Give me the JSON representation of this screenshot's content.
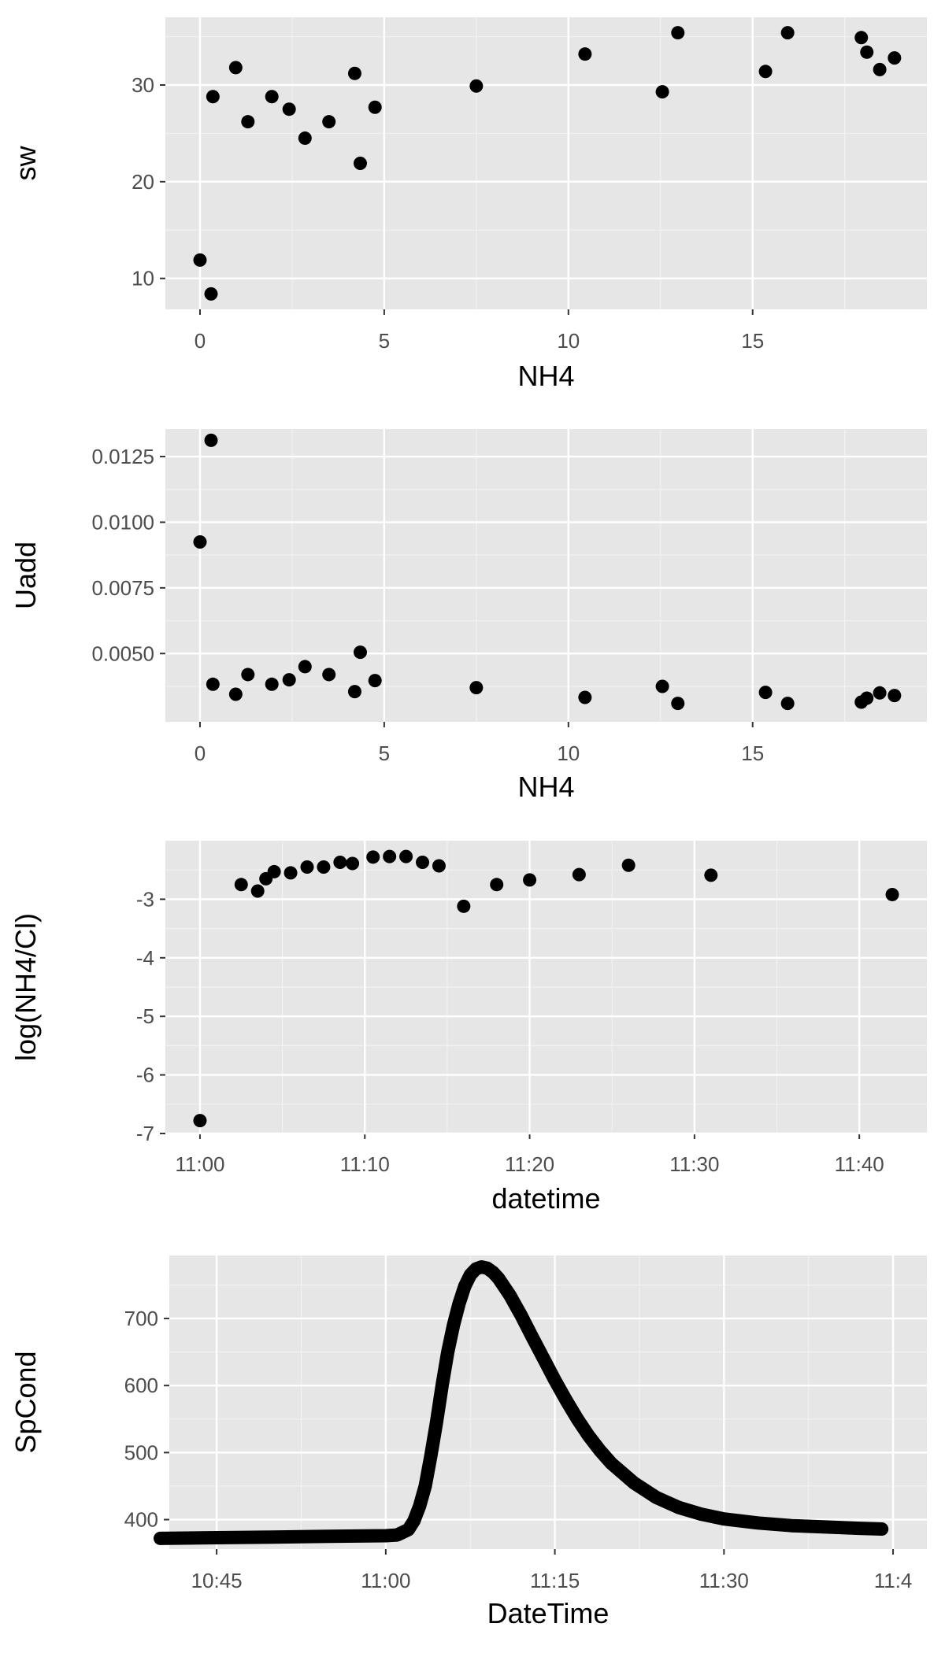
{
  "colors": {
    "panel_background": "#e6e6e6",
    "grid_major": "#ffffff",
    "grid_minor": "#f2f2f2",
    "point": "#000000",
    "tick_label": "#4d4d4d",
    "axis_title": "#000000"
  },
  "chart_data": [
    {
      "type": "scatter",
      "xlabel": "NH4",
      "ylabel": "sw",
      "grid": true,
      "xlim": [
        -0.94,
        19.73
      ],
      "ylim": [
        6.8,
        37.0
      ],
      "x_ticks": [
        0,
        5,
        10,
        15
      ],
      "x_tick_labels": [
        "0",
        "5",
        "10",
        "15"
      ],
      "y_ticks": [
        10,
        20,
        30
      ],
      "y_tick_labels": [
        "10",
        "20",
        "30"
      ],
      "points": [
        {
          "x": 0.0,
          "y": 11.9
        },
        {
          "x": 0.3,
          "y": 8.4
        },
        {
          "x": 0.35,
          "y": 28.8
        },
        {
          "x": 0.97,
          "y": 31.8
        },
        {
          "x": 1.3,
          "y": 26.2
        },
        {
          "x": 1.95,
          "y": 28.8
        },
        {
          "x": 2.42,
          "y": 27.5
        },
        {
          "x": 2.85,
          "y": 24.5
        },
        {
          "x": 3.5,
          "y": 26.2
        },
        {
          "x": 4.2,
          "y": 31.2
        },
        {
          "x": 4.35,
          "y": 21.9
        },
        {
          "x": 4.75,
          "y": 27.7
        },
        {
          "x": 7.5,
          "y": 29.9
        },
        {
          "x": 10.45,
          "y": 33.2
        },
        {
          "x": 12.55,
          "y": 29.3
        },
        {
          "x": 12.97,
          "y": 35.4
        },
        {
          "x": 15.35,
          "y": 31.4
        },
        {
          "x": 15.95,
          "y": 35.4
        },
        {
          "x": 17.95,
          "y": 34.9
        },
        {
          "x": 18.1,
          "y": 33.4
        },
        {
          "x": 18.45,
          "y": 31.6
        },
        {
          "x": 18.85,
          "y": 32.8
        }
      ]
    },
    {
      "type": "scatter",
      "xlabel": "NH4",
      "ylabel": "Uadd",
      "grid": true,
      "xlim": [
        -0.94,
        19.73
      ],
      "ylim": [
        0.0024,
        0.01355
      ],
      "x_ticks": [
        0,
        5,
        10,
        15
      ],
      "x_tick_labels": [
        "0",
        "5",
        "10",
        "15"
      ],
      "y_ticks": [
        0.005,
        0.0075,
        0.01,
        0.0125
      ],
      "y_tick_labels": [
        "0.0050",
        "0.0075",
        "0.0100",
        "0.0125"
      ],
      "points": [
        {
          "x": 0.0,
          "y": 0.00925
        },
        {
          "x": 0.3,
          "y": 0.01312
        },
        {
          "x": 0.35,
          "y": 0.00383
        },
        {
          "x": 0.97,
          "y": 0.00345
        },
        {
          "x": 1.3,
          "y": 0.0042
        },
        {
          "x": 1.95,
          "y": 0.00383
        },
        {
          "x": 2.42,
          "y": 0.004
        },
        {
          "x": 2.85,
          "y": 0.0045
        },
        {
          "x": 3.5,
          "y": 0.0042
        },
        {
          "x": 4.2,
          "y": 0.00355
        },
        {
          "x": 4.35,
          "y": 0.00505
        },
        {
          "x": 4.75,
          "y": 0.00397
        },
        {
          "x": 7.5,
          "y": 0.0037
        },
        {
          "x": 10.45,
          "y": 0.00333
        },
        {
          "x": 12.55,
          "y": 0.00375
        },
        {
          "x": 12.97,
          "y": 0.0031
        },
        {
          "x": 15.35,
          "y": 0.00352
        },
        {
          "x": 15.95,
          "y": 0.0031
        },
        {
          "x": 17.95,
          "y": 0.00315
        },
        {
          "x": 18.1,
          "y": 0.0033
        },
        {
          "x": 18.45,
          "y": 0.0035
        },
        {
          "x": 18.85,
          "y": 0.0034
        }
      ]
    },
    {
      "type": "scatter",
      "xlabel": "datetime",
      "ylabel": "log(NH4/Cl)",
      "grid": true,
      "xlim": [
        "11:00 -2.1 min",
        "11:44.1"
      ],
      "x_minutes_range": [
        -2.1,
        44.1
      ],
      "ylim": [
        -7.0,
        -2.0
      ],
      "x_ticks": [
        0,
        10,
        20,
        30,
        40
      ],
      "x_tick_labels": [
        "11:00",
        "11:10",
        "11:20",
        "11:30",
        "11:40"
      ],
      "y_ticks": [
        -7,
        -6,
        -5,
        -4,
        -3
      ],
      "y_tick_labels": [
        "-7",
        "-6",
        "-5",
        "-4",
        "-3"
      ],
      "points": [
        {
          "x": "11:00:00",
          "y": -6.78
        },
        {
          "x": "11:02:30",
          "y": -2.75
        },
        {
          "x": "11:03:30",
          "y": -2.86
        },
        {
          "x": "11:04:00",
          "y": -2.65
        },
        {
          "x": "11:04:30",
          "y": -2.53
        },
        {
          "x": "11:05:30",
          "y": -2.55
        },
        {
          "x": "11:06:30",
          "y": -2.45
        },
        {
          "x": "11:07:30",
          "y": -2.45
        },
        {
          "x": "11:08:30",
          "y": -2.37
        },
        {
          "x": "11:09:15",
          "y": -2.39
        },
        {
          "x": "11:10:30",
          "y": -2.28
        },
        {
          "x": "11:11:30",
          "y": -2.27
        },
        {
          "x": "11:12:30",
          "y": -2.27
        },
        {
          "x": "11:13:30",
          "y": -2.37
        },
        {
          "x": "11:14:30",
          "y": -2.43
        },
        {
          "x": "11:16:00",
          "y": -3.12
        },
        {
          "x": "11:18:00",
          "y": -2.75
        },
        {
          "x": "11:20:00",
          "y": -2.67
        },
        {
          "x": "11:23:00",
          "y": -2.58
        },
        {
          "x": "11:26:00",
          "y": -2.42
        },
        {
          "x": "11:31:00",
          "y": -2.59
        },
        {
          "x": "11:42:00",
          "y": -2.92
        }
      ]
    },
    {
      "type": "line",
      "xlabel": "DateTime",
      "ylabel": "SpCond",
      "grid": true,
      "x_minutes_range": [
        -19.2,
        48.0
      ],
      "ylim": [
        356,
        794
      ],
      "x_ticks": [
        -15,
        0,
        15,
        30,
        45
      ],
      "x_tick_labels": [
        "10:45",
        "11:00",
        "11:15",
        "11:30",
        "11:4"
      ],
      "y_ticks": [
        400,
        500,
        600,
        700
      ],
      "y_tick_labels": [
        "400",
        "500",
        "600",
        "700"
      ],
      "series": [
        {
          "points": [
            {
              "x": "10:40:00",
              "y": 372
            },
            {
              "x": "10:45:00",
              "y": 373
            },
            {
              "x": "10:50:00",
              "y": 374
            },
            {
              "x": "10:55:00",
              "y": 375
            },
            {
              "x": "11:00:00",
              "y": 376
            },
            {
              "x": "11:01:00",
              "y": 377
            },
            {
              "x": "11:02:00",
              "y": 385
            },
            {
              "x": "11:02:30",
              "y": 398
            },
            {
              "x": "11:03:00",
              "y": 420
            },
            {
              "x": "11:03:30",
              "y": 450
            },
            {
              "x": "11:04:00",
              "y": 495
            },
            {
              "x": "11:04:30",
              "y": 545
            },
            {
              "x": "11:05:00",
              "y": 600
            },
            {
              "x": "11:05:30",
              "y": 650
            },
            {
              "x": "11:06:00",
              "y": 690
            },
            {
              "x": "11:06:30",
              "y": 722
            },
            {
              "x": "11:07:00",
              "y": 748
            },
            {
              "x": "11:07:30",
              "y": 765
            },
            {
              "x": "11:08:00",
              "y": 774
            },
            {
              "x": "11:08:30",
              "y": 777
            },
            {
              "x": "11:09:00",
              "y": 775
            },
            {
              "x": "11:09:30",
              "y": 769
            },
            {
              "x": "11:10:00",
              "y": 760
            },
            {
              "x": "11:11:00",
              "y": 735
            },
            {
              "x": "11:12:00",
              "y": 705
            },
            {
              "x": "11:13:00",
              "y": 672
            },
            {
              "x": "11:14:00",
              "y": 640
            },
            {
              "x": "11:15:00",
              "y": 608
            },
            {
              "x": "11:16:00",
              "y": 578
            },
            {
              "x": "11:17:00",
              "y": 550
            },
            {
              "x": "11:18:00",
              "y": 525
            },
            {
              "x": "11:19:00",
              "y": 503
            },
            {
              "x": "11:20:00",
              "y": 484
            },
            {
              "x": "11:22:00",
              "y": 455
            },
            {
              "x": "11:24:00",
              "y": 433
            },
            {
              "x": "11:26:00",
              "y": 418
            },
            {
              "x": "11:28:00",
              "y": 408
            },
            {
              "x": "11:30:00",
              "y": 401
            },
            {
              "x": "11:33:00",
              "y": 395
            },
            {
              "x": "11:36:00",
              "y": 391
            },
            {
              "x": "11:39:00",
              "y": 389
            },
            {
              "x": "11:42:00",
              "y": 387
            },
            {
              "x": "11:44:00",
              "y": 386
            }
          ]
        }
      ]
    }
  ]
}
